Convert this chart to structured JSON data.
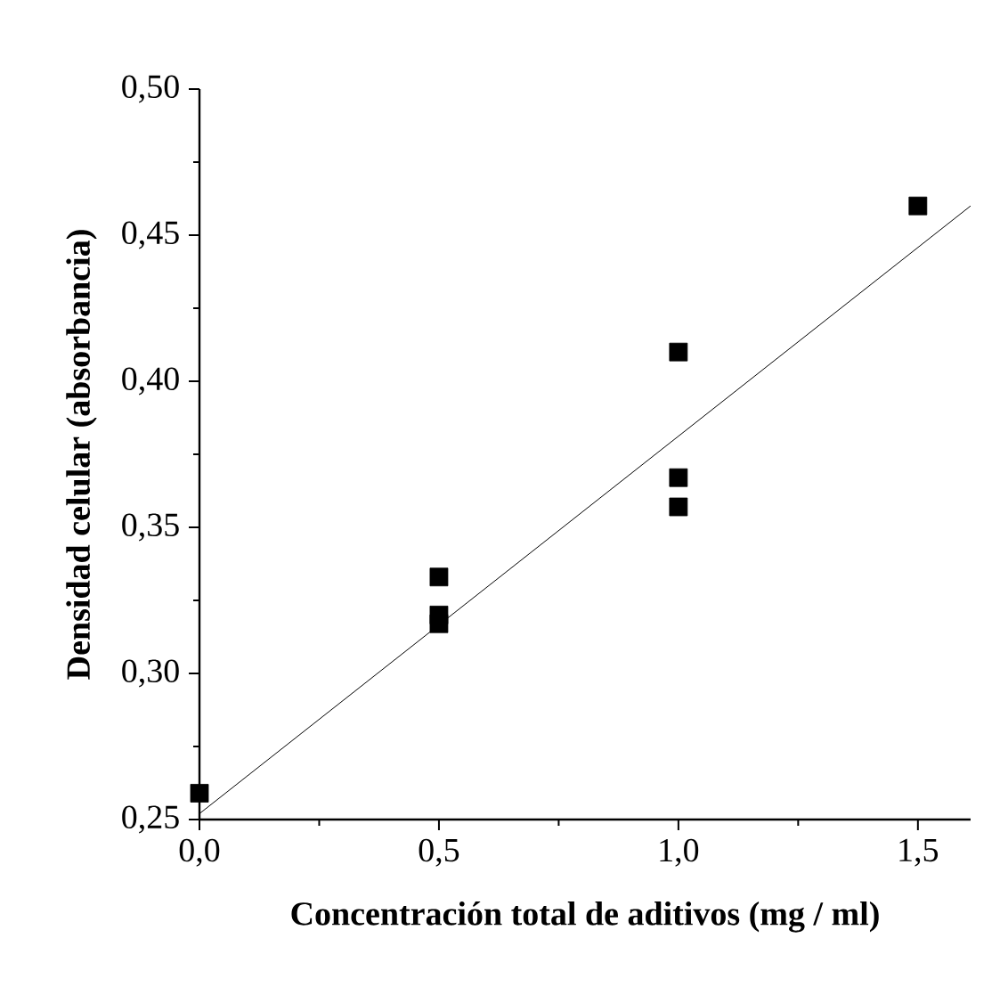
{
  "chart_data": {
    "type": "scatter",
    "xlabel": "Concentración total de aditivos (mg / ml)",
    "ylabel": "Densidad celular (absorbancia)",
    "xlim": [
      0,
      1.61
    ],
    "ylim": [
      0.25,
      0.5
    ],
    "xticks": [
      {
        "value": 0,
        "label": "0,0"
      },
      {
        "value": 0.5,
        "label": "0,5"
      },
      {
        "value": 1.0,
        "label": "1,0"
      },
      {
        "value": 1.5,
        "label": "1,5"
      }
    ],
    "yticks": [
      {
        "value": 0.25,
        "label": "0,25"
      },
      {
        "value": 0.3,
        "label": "0,30"
      },
      {
        "value": 0.35,
        "label": "0,35"
      },
      {
        "value": 0.4,
        "label": "0,40"
      },
      {
        "value": 0.45,
        "label": "0,45"
      },
      {
        "value": 0.5,
        "label": "0,50"
      }
    ],
    "series": [
      {
        "color": "#000000",
        "marker": "square",
        "x": [
          0,
          0.5,
          0.5,
          0.5,
          1.0,
          1.0,
          1.0,
          1.5
        ],
        "values": [
          0.259,
          0.333,
          0.32,
          0.317,
          0.41,
          0.367,
          0.357,
          0.46
        ]
      },
      {
        "type": "line",
        "color": "#000000",
        "marker": "none",
        "line_style": "solid",
        "x": [
          0,
          1.61
        ],
        "values": [
          0.252,
          0.46
        ]
      }
    ]
  }
}
